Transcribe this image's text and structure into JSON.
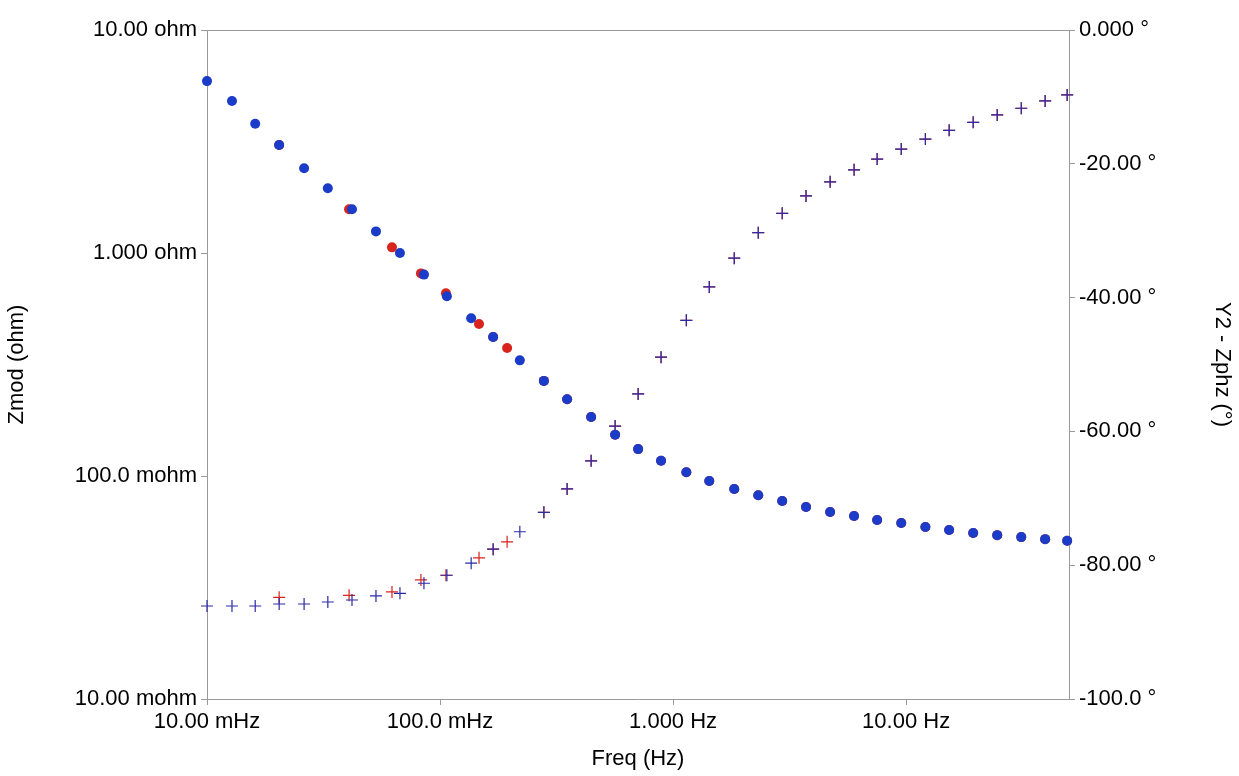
{
  "chart_data": {
    "type": "scatter",
    "x_label": "Freq (Hz)",
    "y_label": "Zmod (ohm)",
    "y2_label": "Y2 - Zphz (°)",
    "log": true,
    "grid": false,
    "xlim": [
      0.01,
      50
    ],
    "xticks": [
      {
        "value": 0.01,
        "label": "10.00 mHz"
      },
      {
        "value": 0.1,
        "label": "100.0 mHz"
      },
      {
        "value": 1,
        "label": "1.000 Hz"
      },
      {
        "value": 10,
        "label": "10.00 Hz"
      }
    ],
    "ylim": [
      0.01,
      10
    ],
    "yticks": [
      {
        "value": 0.01,
        "label": "10.00 mohm"
      },
      {
        "value": 0.1,
        "label": "100.0 mohm"
      },
      {
        "value": 1,
        "label": "1.000 ohm"
      },
      {
        "value": 10,
        "label": "10.00 ohm"
      }
    ],
    "y2lim": [
      -100,
      0
    ],
    "y2ticks": [
      {
        "value": -100,
        "label": "-100.0 °"
      },
      {
        "value": -80,
        "label": "-80.00 °"
      },
      {
        "value": -60,
        "label": "-60.00 °"
      },
      {
        "value": -40,
        "label": "-40.00 °"
      },
      {
        "value": -20,
        "label": "-20.00 °"
      },
      {
        "value": 0,
        "label": "0.000 °"
      }
    ],
    "series": [
      {
        "color": "#1a3cc8",
        "marker": "circle",
        "axis": "y",
        "x": [
          0.01,
          0.0128,
          0.0161,
          0.0204,
          0.0261,
          0.033,
          0.0419,
          0.0531,
          0.0673,
          0.0853,
          0.107,
          0.136,
          0.169,
          0.22,
          0.279,
          0.351,
          0.445,
          0.564,
          0.708,
          0.888,
          1.14,
          1.43,
          1.83,
          2.32,
          2.94,
          3.72,
          4.72,
          5.98,
          7.51,
          9.53,
          12.1,
          15.3,
          19.4,
          24.6,
          31.2,
          39.5,
          49.1
        ],
        "values": [
          5.9,
          4.8,
          3.8,
          3.05,
          2.4,
          1.95,
          1.57,
          1.25,
          1.0,
          0.8,
          0.64,
          0.51,
          0.42,
          0.33,
          0.267,
          0.221,
          0.184,
          0.153,
          0.132,
          0.117,
          0.104,
          0.095,
          0.0875,
          0.082,
          0.0773,
          0.0726,
          0.069,
          0.0662,
          0.0635,
          0.0616,
          0.0591,
          0.0573,
          0.0555,
          0.0543,
          0.0532,
          0.0521,
          0.0512
        ]
      },
      {
        "color": "#d8241c",
        "marker": "circle",
        "axis": "y",
        "x": [
          0.0204,
          0.0407,
          0.0622,
          0.0828,
          0.106,
          0.147,
          0.169,
          0.194,
          0.279,
          0.351,
          0.445,
          0.564,
          0.708,
          0.888,
          1.14,
          1.43,
          1.83,
          2.32,
          2.94,
          3.72,
          4.72,
          5.98,
          7.51,
          9.53,
          12.1,
          15.3,
          19.4,
          24.6,
          31.2,
          39.5,
          49.1
        ],
        "values": [
          3.05,
          1.57,
          1.06,
          0.81,
          0.66,
          0.48,
          0.42,
          0.375,
          0.267,
          0.221,
          0.184,
          0.153,
          0.132,
          0.117,
          0.104,
          0.095,
          0.0875,
          0.082,
          0.0773,
          0.0726,
          0.069,
          0.0662,
          0.0635,
          0.0616,
          0.0591,
          0.0573,
          0.0555,
          0.0543,
          0.0532,
          0.0521,
          0.0512
        ]
      },
      {
        "color": "#2a2aa8",
        "marker": "cross",
        "axis": "y2",
        "x": [
          0.01,
          0.0128,
          0.0161,
          0.0204,
          0.0261,
          0.033,
          0.0419,
          0.0531,
          0.0673,
          0.0853,
          0.107,
          0.136,
          0.169,
          0.22,
          0.279,
          0.351,
          0.445,
          0.564,
          0.708,
          0.888,
          1.14,
          1.43,
          1.83,
          2.32,
          2.94,
          3.72,
          4.72,
          5.98,
          7.51,
          9.53,
          12.1,
          15.3,
          19.4,
          24.6,
          31.2,
          39.5,
          49.1
        ],
        "values": [
          -86.1,
          -86.1,
          -86.1,
          -85.8,
          -85.8,
          -85.5,
          -85.2,
          -84.6,
          -84.2,
          -82.7,
          -81.5,
          -79.7,
          -77.6,
          -75.0,
          -72.1,
          -68.6,
          -64.4,
          -59.2,
          -54.4,
          -48.9,
          -43.4,
          -38.4,
          -34.1,
          -30.3,
          -27.4,
          -24.8,
          -22.7,
          -20.9,
          -19.3,
          -17.8,
          -16.3,
          -15.0,
          -13.8,
          -12.7,
          -11.7,
          -10.6,
          -9.7
        ]
      },
      {
        "color": "#d8241c",
        "marker": "cross",
        "axis": "y2",
        "x": [
          0.0204,
          0.0407,
          0.0622,
          0.0828,
          0.106,
          0.147,
          0.169,
          0.194,
          0.279,
          0.351,
          0.445,
          0.564,
          0.708,
          0.888,
          1.14,
          1.43,
          1.83,
          2.32,
          2.94,
          3.72,
          4.72,
          5.98,
          7.51,
          9.53,
          12.1,
          15.3,
          19.4,
          24.6,
          31.2,
          39.5,
          49.1
        ],
        "values": [
          -84.8,
          -84.5,
          -84.0,
          -82.2,
          -81.5,
          -78.9,
          -77.6,
          -76.5,
          -72.1,
          -68.6,
          -64.4,
          -59.2,
          -54.4,
          -48.9,
          -43.4,
          -38.4,
          -34.1,
          -30.3,
          -27.4,
          -24.8,
          -22.7,
          -20.9,
          -19.3,
          -17.8,
          -16.3,
          -15.0,
          -13.8,
          -12.7,
          -11.7,
          -10.6,
          -9.7
        ]
      }
    ]
  }
}
